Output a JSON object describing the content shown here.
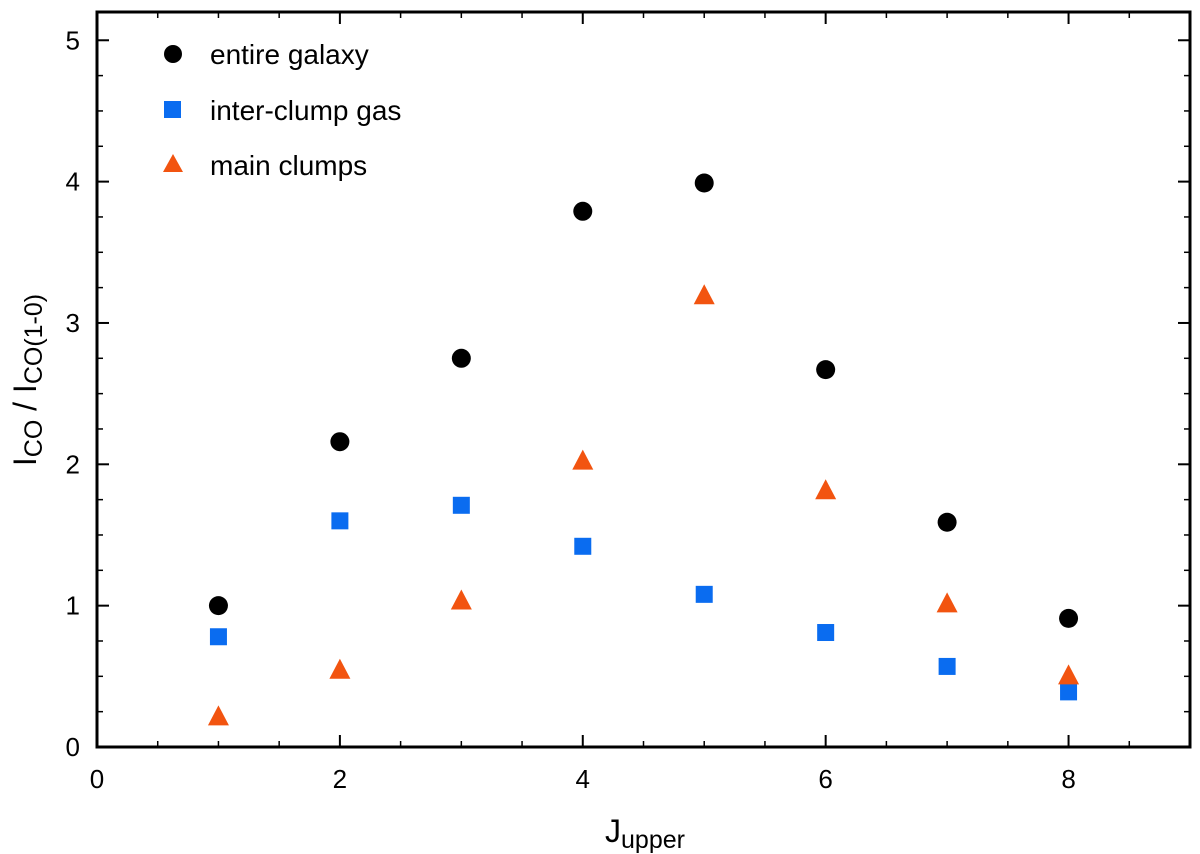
{
  "chart_data": {
    "type": "scatter",
    "xlabel": {
      "main": "J",
      "sub": "upper"
    },
    "ylabel": {
      "part1_main": "I",
      "part1_sub": "CO",
      "separator": " / ",
      "part2_main": "I",
      "part2_sub": "CO(1-0)"
    },
    "xlim": [
      0,
      9
    ],
    "ylim": [
      0,
      5.2
    ],
    "xticks": [
      0,
      2,
      4,
      6,
      8
    ],
    "yticks": [
      0,
      1,
      2,
      3,
      4,
      5
    ],
    "x_minor_step": 0.5,
    "y_minor_step": 0.25,
    "legend_position": "top-left",
    "series": [
      {
        "name": "entire galaxy",
        "marker": "circle",
        "color": "#000000",
        "x": [
          1,
          2,
          3,
          4,
          5,
          6,
          7,
          8
        ],
        "y": [
          1.0,
          2.16,
          2.75,
          3.79,
          3.99,
          2.67,
          1.59,
          0.91
        ]
      },
      {
        "name": "inter-clump gas",
        "marker": "square",
        "color": "#0a6cf0",
        "x": [
          1,
          2,
          3,
          4,
          5,
          6,
          7,
          8
        ],
        "y": [
          0.78,
          1.6,
          1.71,
          1.42,
          1.08,
          0.81,
          0.57,
          0.39
        ]
      },
      {
        "name": "main clumps",
        "marker": "triangle",
        "color": "#f25410",
        "x": [
          1,
          2,
          3,
          4,
          5,
          6,
          7,
          8
        ],
        "y": [
          0.22,
          0.55,
          1.04,
          2.03,
          3.2,
          1.82,
          1.02,
          0.51
        ]
      }
    ]
  }
}
